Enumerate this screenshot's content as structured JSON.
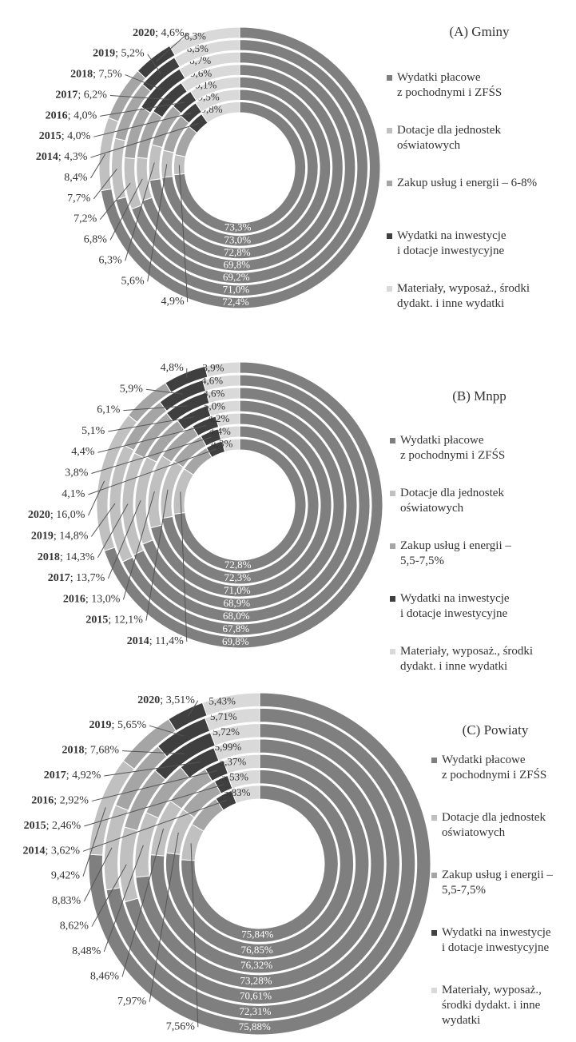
{
  "chart_data": [
    {
      "type": "donut",
      "title": "(A) Gminy",
      "categories": [
        "2014",
        "2015",
        "2016",
        "2017",
        "2018",
        "2019",
        "2020"
      ],
      "series": [
        {
          "name": "Wydatki płacowe\nz pochodnymi i ZFŚS",
          "color": "#7f7f7f",
          "values": [
            73.3,
            73.0,
            72.8,
            69.8,
            69.2,
            71.0,
            72.4
          ],
          "value_labels": [
            "73,3%",
            "73,0%",
            "72,8%",
            "69,8%",
            "69,2%",
            "71,0%",
            "72,4%"
          ]
        },
        {
          "name": "Dotacje dla jednostek\noświatowych",
          "color": "#c0c0c0",
          "values": [
            4.9,
            5.6,
            6.3,
            6.8,
            7.2,
            7.7,
            8.4
          ],
          "value_labels": [
            "4,9%",
            "5,6%",
            "6,3%",
            "6,8%",
            "7,2%",
            "7,7%",
            "8,4%"
          ]
        },
        {
          "name": "Zakup usług i energii – 6-8%",
          "color": "#a5a5a5",
          "values": [
            7.7,
            7.9,
            7.8,
            7.6,
            7.4,
            7.6,
            6.3
          ]
        },
        {
          "name": "Wydatki na inwestycje\ni dotacje inwestycyjne",
          "color": "#3f3f3f",
          "values": [
            4.3,
            4.0,
            4.0,
            6.2,
            7.5,
            5.2,
            4.6
          ],
          "value_labels": [
            "4,3%",
            "4,0%",
            "4,0%",
            "6,2%",
            "7,5%",
            "5,2%",
            "4,6%"
          ],
          "year_in_label": true
        },
        {
          "name": "Materiały, wyposaż., środki\ndydakt. i inne wydatki",
          "color": "#d9d9d9",
          "values": [
            9.8,
            9.5,
            9.1,
            9.6,
            8.7,
            8.5,
            8.3
          ],
          "value_labels": [
            "9,8%",
            "9,5%",
            "9,1%",
            "9,6%",
            "8,7%",
            "8,5%",
            "8,3%"
          ]
        }
      ]
    },
    {
      "type": "donut",
      "title": "(B) Mnpp",
      "categories": [
        "2014",
        "2015",
        "2016",
        "2017",
        "2018",
        "2019",
        "2020"
      ],
      "series": [
        {
          "name": "Wydatki płacowe\nz pochodnymi i ZFŚS",
          "color": "#7f7f7f",
          "values": [
            72.8,
            72.3,
            71.0,
            68.9,
            68.0,
            67.8,
            69.8
          ],
          "value_labels": [
            "72,8%",
            "72,3%",
            "71,0%",
            "68,9%",
            "68,0%",
            "67,8%",
            "69,8%"
          ]
        },
        {
          "name": "Dotacje dla jednostek\noświatowych",
          "color": "#c0c0c0",
          "values": [
            11.4,
            12.1,
            13.0,
            13.7,
            14.3,
            14.8,
            16.0
          ],
          "value_labels": [
            "11,4%",
            "12,1%",
            "13,0%",
            "13,7%",
            "14,3%",
            "14,8%",
            "16,0%"
          ],
          "year_in_label": true
        },
        {
          "name": "Zakup usług i energii –\n5,5-7,5%",
          "color": "#a5a5a5",
          "values": [
            7.4,
            7.4,
            7.4,
            7.3,
            7.0,
            6.9,
            5.5
          ]
        },
        {
          "name": "Wydatki na inwestycje\ni dotacje inwestycyjne",
          "color": "#3f3f3f",
          "values": [
            4.1,
            3.8,
            4.4,
            5.1,
            6.1,
            5.9,
            4.8
          ],
          "value_labels": [
            "4,1%",
            "3,8%",
            "4,4%",
            "5,1%",
            "6,1%",
            "5,9%",
            "4,8%"
          ]
        },
        {
          "name": "Materiały, wyposaż., środki\ndydakt. i inne wydatki",
          "color": "#d9d9d9",
          "values": [
            4.3,
            4.4,
            4.2,
            5.0,
            4.6,
            4.6,
            3.9
          ],
          "value_labels": [
            "4,3%",
            "4,4%",
            "4,2%",
            "5,0%",
            "4,6%",
            "4,6%",
            "3,9%"
          ]
        }
      ]
    },
    {
      "type": "donut",
      "title": "(C) Powiaty",
      "categories": [
        "2014",
        "2015",
        "2016",
        "2017",
        "2018",
        "2019",
        "2020"
      ],
      "series": [
        {
          "name": "Wydatki płacowe\nz pochodnymi i ZFŚS",
          "color": "#7f7f7f",
          "values": [
            75.84,
            76.85,
            76.32,
            73.28,
            70.61,
            72.31,
            75.88
          ],
          "value_labels": [
            "75,84%",
            "76,85%",
            "76,32%",
            "73,28%",
            "70,61%",
            "72,31%",
            "75,88%"
          ]
        },
        {
          "name": "Dotacje dla jednostek\noświatowych",
          "color": "#c0c0c0",
          "values": [
            7.56,
            7.97,
            8.46,
            8.48,
            8.62,
            8.83,
            9.42
          ],
          "value_labels": [
            "7,56%",
            "7,97%",
            "8,46%",
            "8,48%",
            "8,62%",
            "8,83%",
            "9,42%"
          ]
        },
        {
          "name": "Zakup usług i energii –\n5,5-7,5%",
          "color": "#a5a5a5",
          "values": [
            7.15,
            7.19,
            6.93,
            7.33,
            7.37,
            7.5,
            5.76
          ]
        },
        {
          "name": "Wydatki na inwestycje\ni dotacje inwestycyjne",
          "color": "#3f3f3f",
          "values": [
            3.62,
            2.46,
            2.92,
            4.92,
            7.68,
            5.65,
            3.51
          ],
          "value_labels": [
            "3,62%",
            "2,46%",
            "2,92%",
            "4,92%",
            "7,68%",
            "5,65%",
            "3,51%"
          ],
          "year_in_label": true
        },
        {
          "name": "Materiały, wyposaż.,\nśrodki dydakt. i inne\nwydatki",
          "color": "#d9d9d9",
          "values": [
            5.83,
            5.53,
            5.37,
            5.99,
            5.72,
            5.71,
            5.43
          ],
          "value_labels": [
            "5,83%",
            "5,53%",
            "5,37%",
            "5,99%",
            "5,72%",
            "5,71%",
            "5,43%"
          ]
        }
      ]
    }
  ]
}
